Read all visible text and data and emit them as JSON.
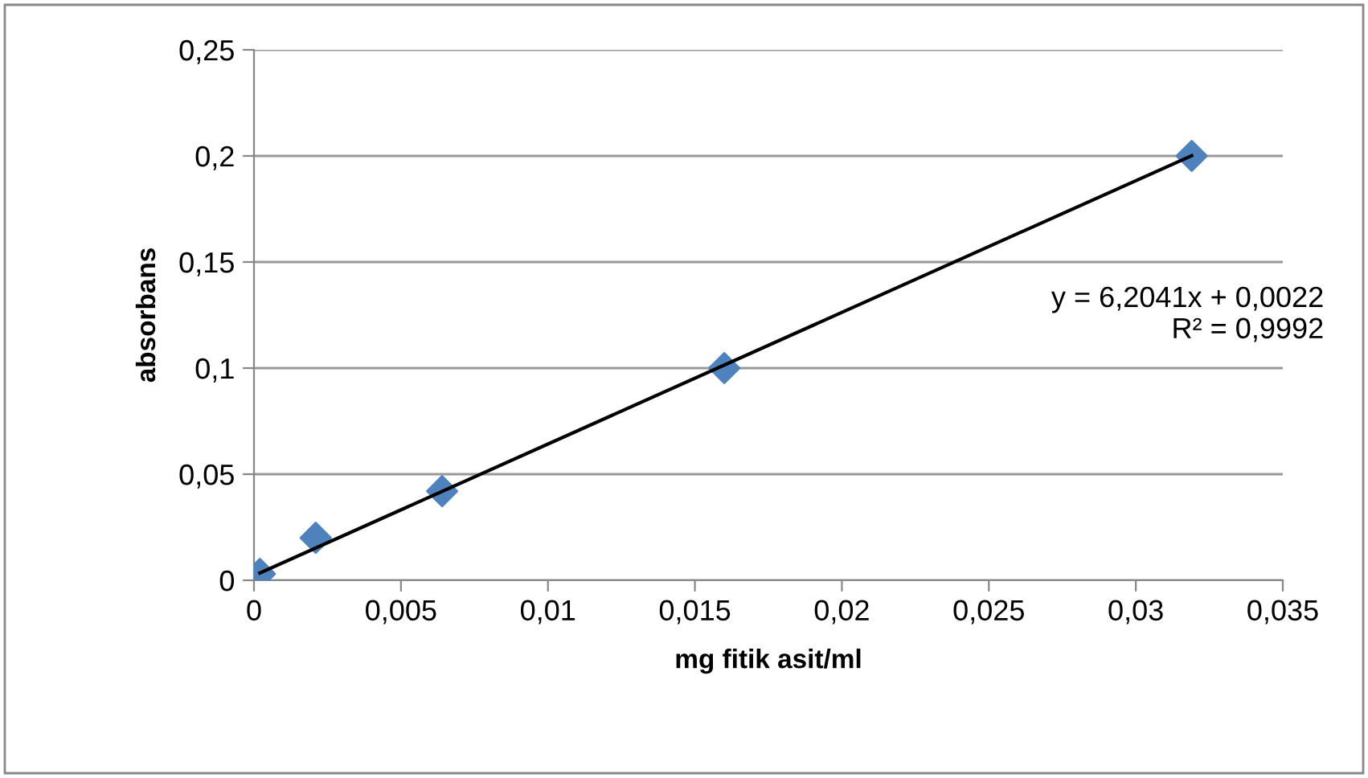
{
  "chart_data": {
    "type": "scatter",
    "xlabel": "mg fitik asit/ml",
    "ylabel": "absorbans",
    "series": [
      {
        "marker": "diamond",
        "color": "#4f81bd",
        "x": [
          0.0002,
          0.0021,
          0.0064,
          0.016,
          0.0319
        ],
        "values": [
          0.003,
          0.02,
          0.042,
          0.1,
          0.2
        ]
      },
      {
        "type": "line",
        "marker": "none",
        "color": "#000000",
        "x": [
          0.0002,
          0.0319
        ],
        "values": [
          0.0034,
          0.2001
        ]
      }
    ],
    "annotations": [
      "y = 6,2041x + 0,0022\nR² = 0,9992"
    ],
    "grid": "y",
    "xlim": [
      0,
      0.035
    ],
    "ylim": [
      0,
      0.25
    ],
    "xticks": [
      {
        "value": 0,
        "label": "0"
      },
      {
        "value": 0.005,
        "label": "0,005"
      },
      {
        "value": 0.01,
        "label": "0,01"
      },
      {
        "value": 0.015,
        "label": "0,015"
      },
      {
        "value": 0.02,
        "label": "0,02"
      },
      {
        "value": 0.025,
        "label": "0,025"
      },
      {
        "value": 0.03,
        "label": "0,03"
      },
      {
        "value": 0.035,
        "label": "0,035"
      }
    ],
    "yticks": [
      {
        "value": 0,
        "label": "0"
      },
      {
        "value": 0.05,
        "label": "0,05"
      },
      {
        "value": 0.1,
        "label": "0,1"
      },
      {
        "value": 0.15,
        "label": "0,15"
      },
      {
        "value": 0.2,
        "label": "0,2"
      },
      {
        "value": 0.25,
        "label": "0,25"
      }
    ]
  }
}
